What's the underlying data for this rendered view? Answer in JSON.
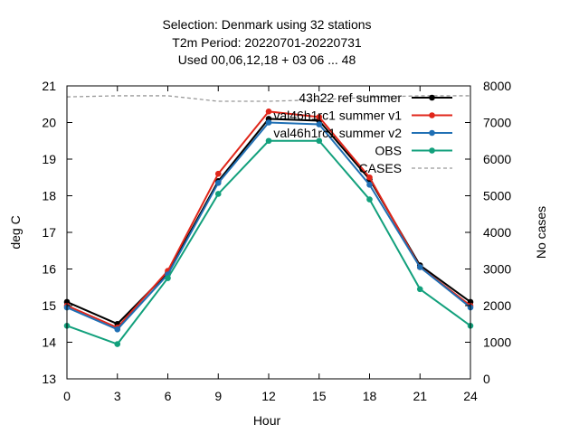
{
  "chart_data": {
    "type": "line",
    "title_lines": [
      "Selection: Denmark using    32 stations",
      "T2m   Period: 20220701-20220731",
      "Used  00,06,12,18  + 03 06 ... 48"
    ],
    "xlabel": "Hour",
    "ylabel": "deg C",
    "y2label": "No cases",
    "x": [
      0,
      3,
      6,
      9,
      12,
      15,
      18,
      21,
      24
    ],
    "xlim": [
      0,
      24
    ],
    "xticks": [
      "0",
      "3",
      "6",
      "9",
      "12",
      "15",
      "18",
      "21",
      "24"
    ],
    "ylim": [
      13,
      21
    ],
    "yticks": [
      "13",
      "14",
      "15",
      "16",
      "17",
      "18",
      "19",
      "20",
      "21"
    ],
    "y2lim": [
      0,
      8000
    ],
    "y2ticks": [
      "0",
      "1000",
      "2000",
      "3000",
      "4000",
      "5000",
      "6000",
      "7000",
      "8000"
    ],
    "legend_position": "top-right",
    "series": [
      {
        "name": "43h22_ref_summer",
        "legend": "43h22 ref summer",
        "color": "#000000",
        "values": [
          15.1,
          14.5,
          15.9,
          18.4,
          20.1,
          20.05,
          18.45,
          16.1,
          15.1
        ]
      },
      {
        "name": "val46h1rc1_summer_v1",
        "legend": "val46h1rc1 summer v1",
        "color": "#e0261a",
        "values": [
          15.0,
          14.4,
          15.95,
          18.6,
          20.3,
          20.15,
          18.5,
          16.05,
          15.0
        ]
      },
      {
        "name": "val46h1rc1_summer_v2",
        "legend": "val46h1rc1 summer v2",
        "color": "#1f6fb4",
        "values": [
          14.95,
          14.35,
          15.85,
          18.35,
          20.0,
          19.95,
          18.3,
          16.05,
          14.95
        ]
      },
      {
        "name": "OBS",
        "legend": "OBS",
        "color": "#12a07c",
        "values": [
          14.45,
          13.95,
          15.75,
          18.05,
          19.5,
          19.5,
          17.9,
          15.45,
          14.45
        ]
      }
    ],
    "cases": {
      "name": "CASES",
      "color": "#999999",
      "axis": "y2",
      "values": [
        7700,
        7730,
        7730,
        7580,
        7580,
        7620,
        7690,
        7730,
        7730
      ]
    }
  }
}
